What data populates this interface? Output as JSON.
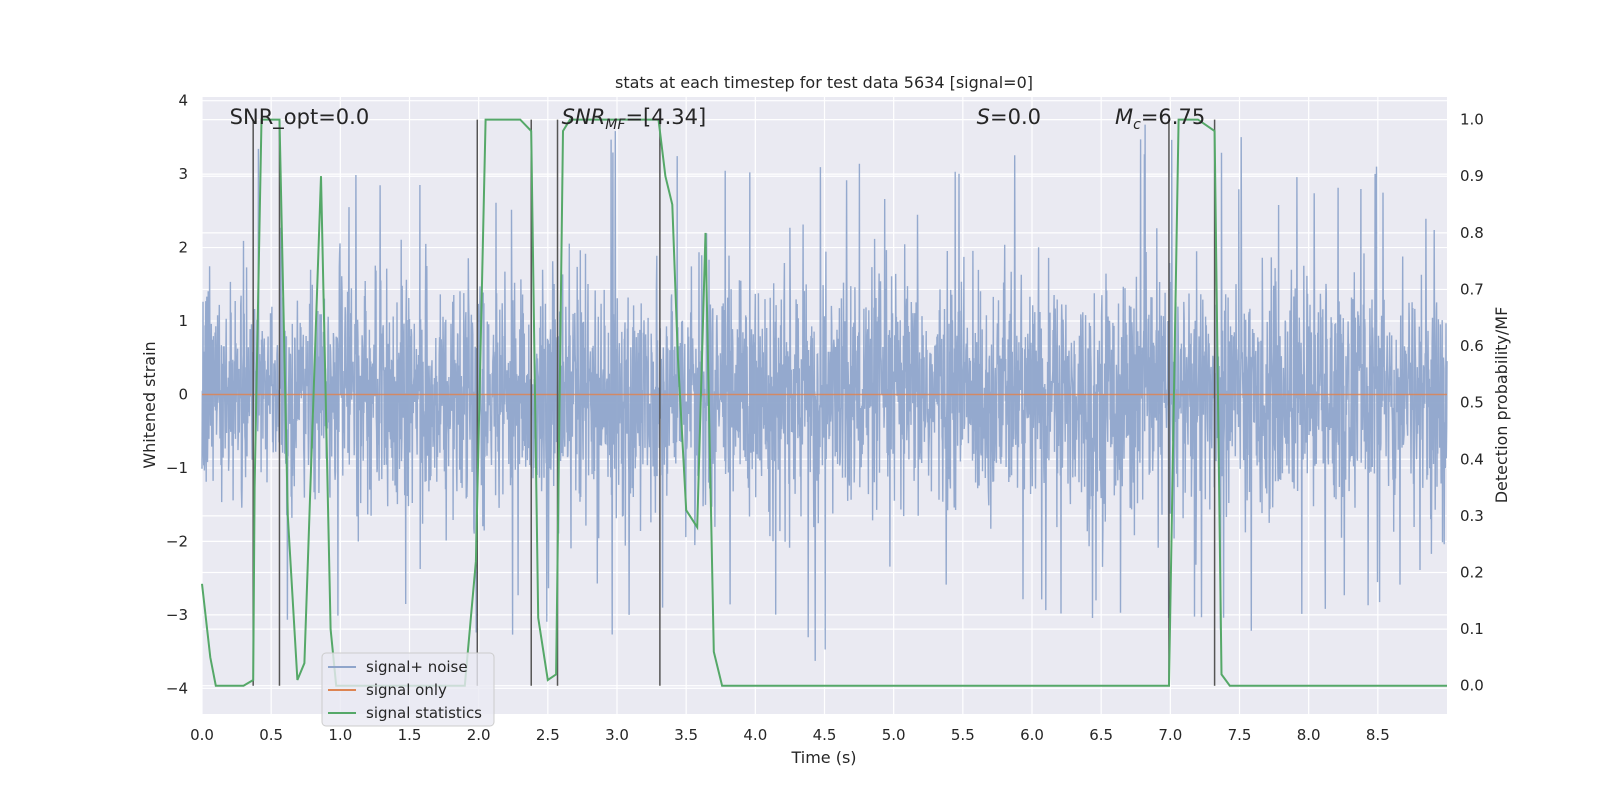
{
  "chart_data": {
    "type": "line",
    "title": "stats at each timestep for test data 5634 [signal=0]",
    "xlabel": "Time (s)",
    "ylabel": "Whitened strain",
    "ylabel_right": "Detection probability/MF",
    "xlim": [
      0.0,
      9.0
    ],
    "ylim": [
      -4.35,
      4.05
    ],
    "ylim_right": [
      -0.05,
      1.04
    ],
    "x_ticks": [
      "0.0",
      "0.5",
      "1.0",
      "1.5",
      "2.0",
      "2.5",
      "3.0",
      "3.5",
      "4.0",
      "4.5",
      "5.0",
      "5.5",
      "6.0",
      "6.5",
      "7.0",
      "7.5",
      "8.0",
      "8.5"
    ],
    "y_ticks": [
      "4",
      "3",
      "2",
      "1",
      "0",
      "−1",
      "−2",
      "−3",
      "−4"
    ],
    "y_ticks_right": [
      "1.0",
      "0.9",
      "0.8",
      "0.7",
      "0.6",
      "0.5",
      "0.4",
      "0.3",
      "0.2",
      "0.1",
      "0.0"
    ],
    "grid": true,
    "legend_position": "lower-left",
    "annotations": [
      {
        "text": "SNR_opt=0.0",
        "x": 0.2
      },
      {
        "text": "SNR",
        "sub": "MF",
        "suffix": "=[4.34]",
        "italic": true,
        "x": 2.6
      },
      {
        "text": "S",
        "suffix": "=0.0",
        "italic": true,
        "x": 5.6
      },
      {
        "text": "M",
        "sub": "c",
        "suffix": "=6.75",
        "italic": true,
        "x": 6.6
      }
    ],
    "vlines": [
      0.37,
      0.56,
      1.99,
      2.38,
      2.57,
      3.31,
      6.99,
      7.32
    ],
    "series": [
      {
        "name": "signal+ noise",
        "color": "#8fa5cb",
        "axis": "left",
        "envelope": [
          [
            0.0,
            3.0,
            -3.1
          ],
          [
            0.25,
            3.2,
            -3.0
          ],
          [
            0.5,
            3.5,
            -3.3
          ],
          [
            1.0,
            2.9,
            -3.1
          ],
          [
            1.25,
            3.3,
            -3.0
          ],
          [
            1.5,
            3.3,
            -3.2
          ],
          [
            2.0,
            3.4,
            -3.6
          ],
          [
            2.25,
            2.7,
            -3.3
          ],
          [
            2.5,
            3.8,
            -3.1
          ],
          [
            3.0,
            3.6,
            -3.4
          ],
          [
            3.5,
            3.8,
            -3.3
          ],
          [
            4.0,
            3.1,
            -3.3
          ],
          [
            4.5,
            3.3,
            -3.9
          ],
          [
            5.0,
            3.1,
            -3.5
          ],
          [
            5.5,
            3.3,
            -3.3
          ],
          [
            5.9,
            3.8,
            -3.0
          ],
          [
            6.5,
            3.9,
            -3.2
          ],
          [
            7.0,
            3.8,
            -3.3
          ],
          [
            7.5,
            3.7,
            -3.2
          ],
          [
            8.0,
            3.1,
            -3.4
          ],
          [
            8.5,
            3.3,
            -3.0
          ],
          [
            9.0,
            2.4,
            -2.0
          ]
        ]
      },
      {
        "name": "signal only",
        "color": "#dd8452",
        "axis": "left",
        "x": [
          0.0,
          9.0
        ],
        "y": [
          0.0,
          0.0
        ]
      },
      {
        "name": "signal statistics",
        "color": "#55a868",
        "axis": "right",
        "x": [
          0.0,
          0.06,
          0.1,
          0.3,
          0.37,
          0.38,
          0.43,
          0.56,
          0.62,
          0.69,
          0.74,
          0.86,
          0.93,
          0.97,
          1.12,
          1.2,
          1.3,
          1.5,
          1.7,
          1.9,
          1.98,
          2.05,
          2.3,
          2.38,
          2.43,
          2.5,
          2.56,
          2.61,
          2.66,
          3.0,
          3.3,
          3.35,
          3.4,
          3.44,
          3.5,
          3.58,
          3.64,
          3.7,
          3.76,
          4.0,
          5.0,
          6.0,
          6.99,
          7.06,
          7.2,
          7.32,
          7.37,
          7.43,
          8.0,
          9.0
        ],
        "y": [
          0.18,
          0.05,
          0.0,
          0.0,
          0.01,
          0.35,
          1.0,
          1.0,
          0.3,
          0.01,
          0.04,
          0.9,
          0.1,
          0.0,
          0.0,
          0.0,
          0.0,
          0.0,
          0.0,
          0.0,
          0.22,
          1.0,
          1.0,
          0.98,
          0.12,
          0.01,
          0.02,
          0.98,
          1.0,
          1.0,
          1.0,
          0.9,
          0.85,
          0.58,
          0.31,
          0.28,
          0.8,
          0.06,
          0.0,
          0.0,
          0.0,
          0.0,
          0.0,
          1.0,
          1.0,
          0.98,
          0.02,
          0.0,
          0.0,
          0.0
        ]
      }
    ]
  }
}
